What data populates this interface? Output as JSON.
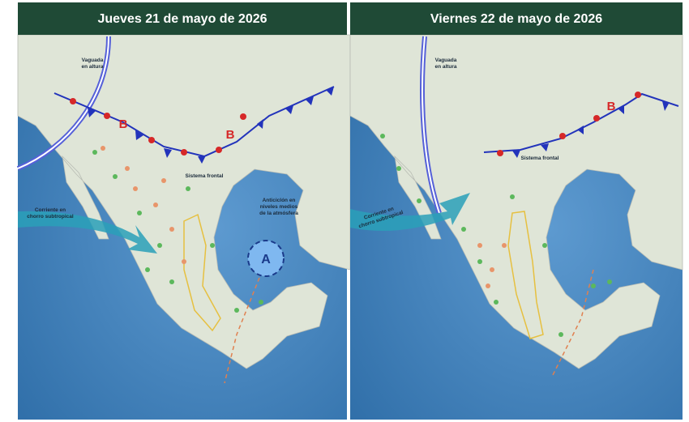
{
  "panels": [
    {
      "title": "Jueves 21 de mayo de 2026",
      "labels": {
        "trough": [
          "Vaguada",
          "en altura"
        ],
        "front": "Sistema frontal",
        "jet": [
          "Corriente en",
          "chorro subtropical"
        ],
        "anticyclone": [
          "Anticiclón en",
          "niveles medios",
          "de la atmósfera"
        ],
        "anticyclone_center": "A",
        "lows": [
          "B",
          "B"
        ]
      }
    },
    {
      "title": "Viernes 22 de mayo de 2026",
      "labels": {
        "trough": [
          "Vaguada",
          "en altura"
        ],
        "front": "Sistema frontal",
        "jet": [
          "Corriente en",
          "chorro subtropical"
        ],
        "lows": [
          "B"
        ]
      }
    }
  ]
}
